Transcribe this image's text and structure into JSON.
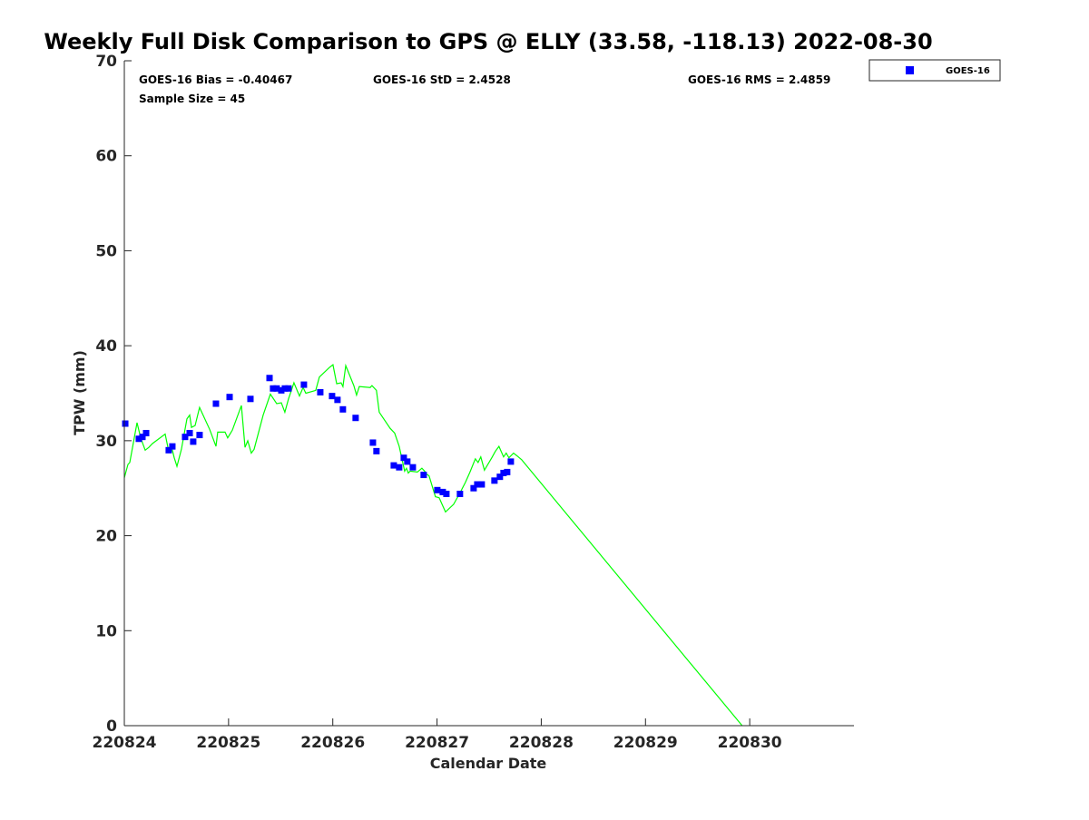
{
  "chart_data": {
    "type": "scatter+line",
    "title": "Weekly Full Disk Comparison to GPS @ ELLY (33.58, -118.13) 2022-08-30",
    "xlabel": "Calendar Date",
    "ylabel": "TPW (mm)",
    "xlim": [
      0,
      7
    ],
    "ylim": [
      0,
      70
    ],
    "x_unit": "days since 220824",
    "xticks": [
      0,
      1,
      2,
      3,
      4,
      5,
      6
    ],
    "xtick_labels": [
      "220824",
      "220825",
      "220826",
      "220827",
      "220828",
      "220829",
      "220830"
    ],
    "yticks": [
      0,
      10,
      20,
      30,
      40,
      50,
      60,
      70
    ],
    "ytick_labels": [
      "0",
      "10",
      "20",
      "30",
      "40",
      "50",
      "60",
      "70"
    ],
    "grid": false,
    "legend": {
      "position": "outside-top-right",
      "entries": [
        "GOES-16"
      ]
    },
    "stats": {
      "bias": "GOES-16 Bias = -0.40467",
      "std": "GOES-16 StD = 2.4528",
      "rms": "GOES-16 RMS = 2.4859",
      "sample": "Sample Size = 45"
    },
    "series": [
      {
        "name": "GOES-16",
        "kind": "scatter",
        "color": "#0000ff",
        "x": [
          0.009,
          0.139,
          0.174,
          0.209,
          0.426,
          0.461,
          0.583,
          0.627,
          0.661,
          0.722,
          0.879,
          1.01,
          1.21,
          1.393,
          1.427,
          1.462,
          1.506,
          1.54,
          1.575,
          1.723,
          1.88,
          1.993,
          2.045,
          2.097,
          2.219,
          2.385,
          2.419,
          2.585,
          2.637,
          2.681,
          2.715,
          2.768,
          2.872,
          3.003,
          3.055,
          3.09,
          3.22,
          3.351,
          3.386,
          3.429,
          3.551,
          3.603,
          3.638,
          3.673,
          3.708
        ],
        "y": [
          31.8,
          30.2,
          30.4,
          30.8,
          29.0,
          29.4,
          30.4,
          30.8,
          29.9,
          30.6,
          33.9,
          34.6,
          34.4,
          36.6,
          35.5,
          35.5,
          35.3,
          35.5,
          35.5,
          35.9,
          35.1,
          34.7,
          34.3,
          33.3,
          32.4,
          29.8,
          28.9,
          27.4,
          27.2,
          28.2,
          27.8,
          27.2,
          26.4,
          24.8,
          24.6,
          24.4,
          24.4,
          25.0,
          25.4,
          25.4,
          25.8,
          26.2,
          26.6,
          26.7,
          27.8
        ]
      },
      {
        "name": "GPS",
        "kind": "line",
        "color": "#00ff00",
        "x": [
          0,
          0.035,
          0.052,
          0.122,
          0.157,
          0.2,
          0.235,
          0.27,
          0.392,
          0.426,
          0.461,
          0.479,
          0.505,
          0.548,
          0.601,
          0.627,
          0.644,
          0.679,
          0.722,
          0.818,
          0.879,
          0.896,
          0.966,
          0.992,
          1.036,
          1.123,
          1.158,
          1.184,
          1.218,
          1.245,
          1.332,
          1.401,
          1.462,
          1.506,
          1.54,
          1.575,
          1.627,
          1.68,
          1.715,
          1.741,
          1.836,
          1.871,
          1.967,
          2.002,
          2.037,
          2.08,
          2.097,
          2.124,
          2.202,
          2.228,
          2.254,
          2.359,
          2.376,
          2.419,
          2.446,
          2.55,
          2.594,
          2.637,
          2.689,
          2.707,
          2.724,
          2.742,
          2.811,
          2.855,
          2.881,
          2.898,
          2.924,
          2.985,
          3.02,
          3.081,
          3.159,
          3.22,
          3.272,
          3.316,
          3.368,
          3.394,
          3.42,
          3.455,
          3.525,
          3.56,
          3.594,
          3.638,
          3.664,
          3.69,
          3.734,
          3.768,
          3.812,
          5.927
        ],
        "y": [
          26.1,
          27.5,
          27.7,
          31.9,
          30.3,
          29.0,
          29.3,
          29.7,
          30.7,
          28.9,
          29.0,
          28.2,
          27.3,
          29.1,
          32.3,
          32.7,
          31.4,
          31.6,
          33.5,
          31.2,
          29.4,
          30.9,
          30.9,
          30.3,
          31.1,
          33.7,
          29.3,
          30.0,
          28.7,
          29.1,
          32.7,
          34.9,
          33.9,
          34.0,
          33.0,
          34.4,
          36.1,
          34.7,
          35.6,
          35.0,
          35.3,
          36.7,
          37.7,
          38.0,
          36.0,
          36.1,
          35.7,
          37.9,
          35.8,
          34.8,
          35.7,
          35.6,
          35.8,
          35.3,
          33.0,
          31.3,
          30.8,
          29.4,
          26.8,
          27.1,
          26.6,
          26.8,
          26.7,
          27.1,
          26.8,
          26.5,
          26.3,
          24.1,
          24.0,
          22.5,
          23.3,
          24.5,
          25.6,
          26.7,
          28.1,
          27.7,
          28.3,
          26.9,
          28.2,
          28.9,
          29.4,
          28.3,
          28.7,
          28.2,
          28.7,
          28.4,
          28.0,
          0
        ]
      }
    ]
  }
}
